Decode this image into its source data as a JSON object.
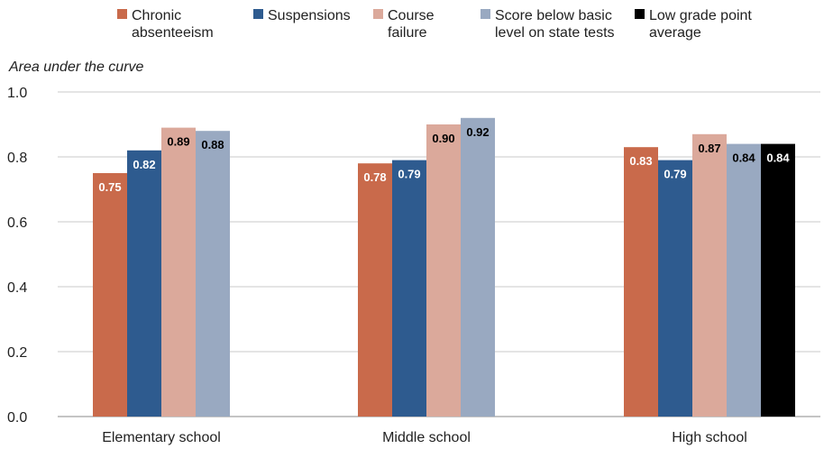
{
  "chart_data": {
    "type": "bar",
    "ylabel": "Area under the curve",
    "ylim": [
      0,
      1.0
    ],
    "yticks": [
      "0.0",
      "0.2",
      "0.4",
      "0.6",
      "0.8",
      "1.0"
    ],
    "grid": true,
    "legend_position": "top",
    "categories": [
      "Elementary school",
      "Middle school",
      "High school"
    ],
    "series": [
      {
        "name": [
          "Chronic",
          "absenteeism"
        ],
        "color": "#c96a4b",
        "label_color": "#ffffff",
        "values": [
          0.75,
          0.78,
          0.83
        ],
        "labels": [
          "0.75",
          "0.78",
          "0.83"
        ]
      },
      {
        "name": [
          "Suspensions"
        ],
        "color": "#2e5b8f",
        "label_color": "#ffffff",
        "values": [
          0.82,
          0.79,
          0.79
        ],
        "labels": [
          "0.82",
          "0.79",
          "0.79"
        ]
      },
      {
        "name": [
          "Course",
          "failure"
        ],
        "color": "#dba99b",
        "label_color": "#000000",
        "values": [
          0.89,
          0.9,
          0.87
        ],
        "labels": [
          "0.89",
          "0.90",
          "0.87"
        ]
      },
      {
        "name": [
          "Score below basic",
          "level on state tests"
        ],
        "color": "#99a9c1",
        "label_color": "#000000",
        "values": [
          0.88,
          0.92,
          0.84
        ],
        "labels": [
          "0.88",
          "0.92",
          "0.84"
        ]
      },
      {
        "name": [
          "Low grade point",
          "average"
        ],
        "color": "#000000",
        "label_color": "#ffffff",
        "values": [
          null,
          null,
          0.84
        ],
        "labels": [
          null,
          null,
          "0.84"
        ]
      }
    ]
  }
}
